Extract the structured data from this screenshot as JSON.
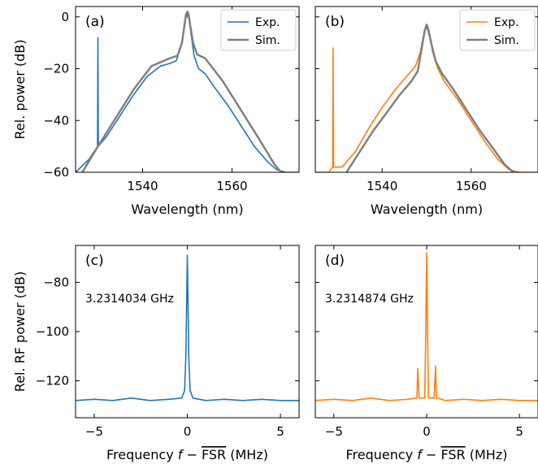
{
  "colors": {
    "exp_a": "#1f77b4",
    "exp_b": "#ff7f0e",
    "sim": "#808080"
  },
  "chart_data": [
    {
      "panel": "(a)",
      "type": "line",
      "xlabel": "Wavelength (nm)",
      "ylabel": "Rel. power (dB)",
      "xlim": [
        1525,
        1575
      ],
      "ylim": [
        -60,
        4
      ],
      "xticks": [
        1540,
        1560
      ],
      "yticks": [
        0,
        -20,
        -40,
        -60
      ],
      "legend": {
        "position": "top-right",
        "entries": [
          "Exp.",
          "Sim."
        ]
      },
      "series": [
        {
          "name": "Exp.",
          "color": "#1f77b4",
          "x": [
            1525,
            1528,
            1529.9,
            1530,
            1530.1,
            1532,
            1535,
            1538,
            1541,
            1544,
            1546,
            1547.5,
            1548.5,
            1549.2,
            1549.6,
            1550,
            1550.4,
            1550.8,
            1551.5,
            1552.5,
            1554,
            1556,
            1559,
            1562,
            1565,
            1568,
            1570,
            1572,
            1575
          ],
          "y": [
            -60,
            -55,
            -50,
            -8,
            -50,
            -46,
            -38,
            -30,
            -23,
            -19,
            -18,
            -17,
            -12,
            -6,
            -1,
            1,
            -1,
            -6,
            -15,
            -20,
            -22,
            -27,
            -34,
            -42,
            -50,
            -56,
            -59,
            -60,
            -60
          ]
        },
        {
          "name": "Sim.",
          "color": "#808080",
          "x": [
            1526.5,
            1530,
            1534,
            1538,
            1542,
            1546,
            1547.8,
            1548.8,
            1549.3,
            1549.7,
            1550,
            1550.3,
            1550.7,
            1551.3,
            1552.2,
            1554,
            1558,
            1562,
            1566,
            1569.5,
            1571
          ],
          "y": [
            -60,
            -50,
            -39,
            -28,
            -19,
            -16,
            -15,
            -10,
            -4,
            1,
            2,
            1,
            -4,
            -10,
            -14.5,
            -16,
            -25,
            -36,
            -47,
            -57,
            -60
          ]
        }
      ]
    },
    {
      "panel": "(b)",
      "type": "line",
      "xlabel": "Wavelength (nm)",
      "ylabel": "",
      "xlim": [
        1525,
        1575
      ],
      "ylim": [
        -60,
        4
      ],
      "xticks": [
        1540,
        1560
      ],
      "yticks": [
        0,
        -20,
        -40,
        -60
      ],
      "legend": {
        "position": "top-right",
        "entries": [
          "Exp.",
          "Sim."
        ]
      },
      "series": [
        {
          "name": "Exp.",
          "color": "#ff7f0e",
          "x": [
            1525,
            1528,
            1528.9,
            1529,
            1529.1,
            1531,
            1534,
            1537,
            1540,
            1543,
            1546,
            1547.5,
            1548.5,
            1549.3,
            1549.8,
            1550.2,
            1550.7,
            1551.4,
            1552.5,
            1554,
            1557,
            1560,
            1563,
            1566,
            1568.5,
            1571,
            1575
          ],
          "y": [
            -60,
            -60,
            -58,
            -12,
            -58,
            -58,
            -52,
            -43,
            -35,
            -28,
            -22,
            -19,
            -14,
            -7,
            -4,
            -5,
            -8,
            -14,
            -20,
            -25,
            -32,
            -40,
            -48,
            -55,
            -59,
            -60,
            -60
          ]
        },
        {
          "name": "Sim.",
          "color": "#808080",
          "x": [
            1532,
            1535,
            1538,
            1541,
            1544,
            1546.5,
            1548,
            1549,
            1549.6,
            1550,
            1550.4,
            1551,
            1552,
            1553.5,
            1556,
            1559,
            1562,
            1565,
            1567.5,
            1569.5
          ],
          "y": [
            -60,
            -52,
            -44,
            -37,
            -30,
            -25,
            -21,
            -11,
            -5,
            -3,
            -5,
            -10,
            -17,
            -22,
            -28,
            -36,
            -44,
            -51,
            -57,
            -60
          ]
        }
      ]
    },
    {
      "panel": "(c)",
      "type": "line",
      "xlabel_prefix": "Frequency ",
      "xlabel_var": "f",
      "xlabel_minus": " − ",
      "xlabel_fsr": "FSR",
      "xlabel_unit": " (MHz)",
      "ylabel": "Rel. RF power (dB)",
      "annotation": "3.2314034 GHz",
      "xlim": [
        -6,
        6
      ],
      "ylim": [
        -135,
        -65
      ],
      "xticks": [
        -5,
        0,
        5
      ],
      "yticks": [
        -80,
        -100,
        -120
      ],
      "series": [
        {
          "name": "",
          "color": "#1f77b4",
          "x": [
            -6,
            -5,
            -4,
            -3,
            -2,
            -1,
            -0.3,
            -0.15,
            -0.08,
            0,
            0.08,
            0.15,
            0.3,
            1,
            2,
            3,
            4,
            5,
            6
          ],
          "y": [
            -128,
            -127.5,
            -128,
            -127,
            -128,
            -127.5,
            -127,
            -124,
            -110,
            -69,
            -110,
            -124,
            -127,
            -128,
            -127.5,
            -128,
            -127.5,
            -128,
            -128
          ]
        }
      ]
    },
    {
      "panel": "(d)",
      "type": "line",
      "xlabel_prefix": "Frequency ",
      "xlabel_var": "f",
      "xlabel_minus": " − ",
      "xlabel_fsr": "FSR",
      "xlabel_unit": " (MHz)",
      "ylabel": "",
      "annotation": "3.2314874 GHz",
      "xlim": [
        -6,
        6
      ],
      "ylim": [
        -135,
        -65
      ],
      "xticks": [
        -5,
        0,
        5
      ],
      "yticks": [
        -80,
        -100,
        -120
      ],
      "series": [
        {
          "name": "",
          "color": "#ff7f0e",
          "x": [
            -6,
            -5,
            -4,
            -3,
            -2,
            -1,
            -0.6,
            -0.52,
            -0.48,
            -0.4,
            -0.1,
            -0.05,
            0,
            0.05,
            0.1,
            0.4,
            0.48,
            0.52,
            0.6,
            1,
            2,
            3,
            4,
            5,
            6
          ],
          "y": [
            -128,
            -127.5,
            -128,
            -127,
            -128,
            -127.5,
            -127,
            -127,
            -115,
            -127,
            -127,
            -100,
            -68,
            -100,
            -127,
            -127,
            -114,
            -127,
            -127,
            -128,
            -127.5,
            -128,
            -127.5,
            -128,
            -128
          ]
        }
      ]
    }
  ]
}
